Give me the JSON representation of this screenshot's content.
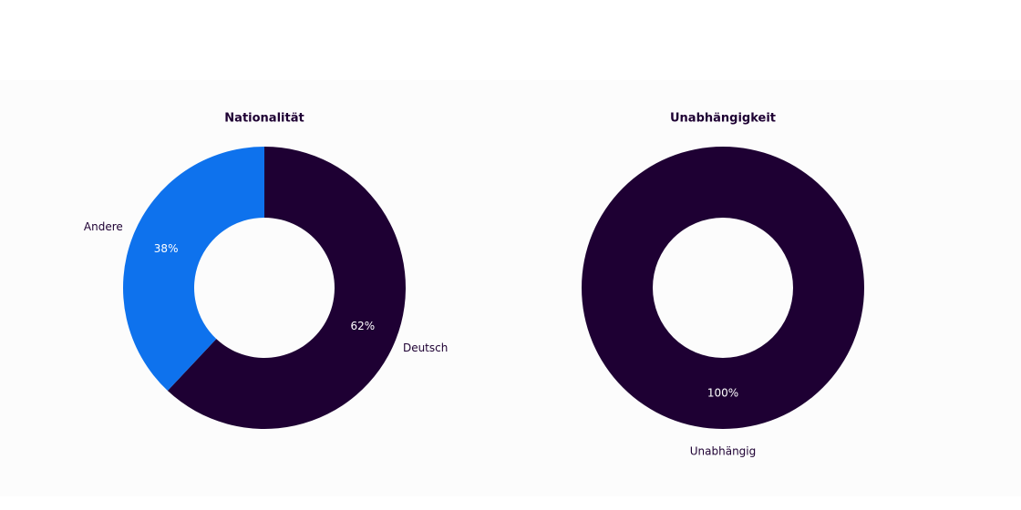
{
  "chart_data": [
    {
      "type": "pie",
      "title": "Nationalität",
      "categories": [
        "Deutsch",
        "Andere"
      ],
      "values": [
        62,
        38
      ],
      "value_labels": [
        "62%",
        "38%"
      ],
      "colors": [
        "#1e0033",
        "#0e72ed"
      ]
    },
    {
      "type": "pie",
      "title": "Unabhängigkeit",
      "categories": [
        "Unabhängig"
      ],
      "values": [
        100
      ],
      "value_labels": [
        "100%"
      ],
      "colors": [
        "#1e0033"
      ]
    }
  ]
}
